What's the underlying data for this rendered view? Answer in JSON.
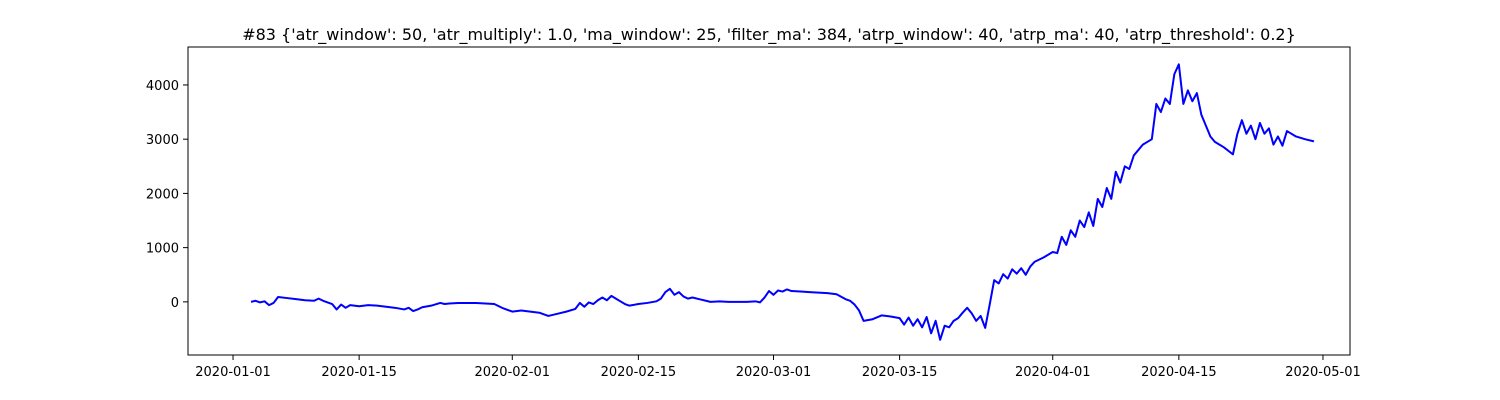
{
  "chart_data": {
    "type": "line",
    "title": "#83 {'atr_window': 50, 'atr_multiply': 1.0, 'ma_window': 25, 'filter_ma': 384, 'atrp_window': 40, 'atrp_ma': 40, 'atrp_threshold': 0.2}",
    "xlabel": "",
    "ylabel": "",
    "x_axis": {
      "kind": "date",
      "range": [
        "2019-12-27",
        "2020-05-04"
      ],
      "ticks": [
        {
          "value": "2020-01-01",
          "label": "2020-01-01"
        },
        {
          "value": "2020-01-15",
          "label": "2020-01-15"
        },
        {
          "value": "2020-02-01",
          "label": "2020-02-01"
        },
        {
          "value": "2020-02-15",
          "label": "2020-02-15"
        },
        {
          "value": "2020-03-01",
          "label": "2020-03-01"
        },
        {
          "value": "2020-03-15",
          "label": "2020-03-15"
        },
        {
          "value": "2020-04-01",
          "label": "2020-04-01"
        },
        {
          "value": "2020-04-15",
          "label": "2020-04-15"
        },
        {
          "value": "2020-05-01",
          "label": "2020-05-01"
        }
      ]
    },
    "y_axis": {
      "range": [
        -980,
        4700
      ],
      "ticks": [
        {
          "value": 0,
          "label": "0"
        },
        {
          "value": 1000,
          "label": "1000"
        },
        {
          "value": 2000,
          "label": "2000"
        },
        {
          "value": 3000,
          "label": "3000"
        },
        {
          "value": 4000,
          "label": "4000"
        }
      ]
    },
    "grid": false,
    "legend": "none",
    "series": [
      {
        "color": "#0000ff",
        "points": [
          [
            "2020-01-03",
            0
          ],
          [
            "2020-01-03T12:00",
            20
          ],
          [
            "2020-01-04",
            -10
          ],
          [
            "2020-01-04T12:00",
            10
          ],
          [
            "2020-01-05",
            -60
          ],
          [
            "2020-01-05T12:00",
            -20
          ],
          [
            "2020-01-06",
            90
          ],
          [
            "2020-01-07",
            70
          ],
          [
            "2020-01-08",
            50
          ],
          [
            "2020-01-09",
            30
          ],
          [
            "2020-01-10",
            20
          ],
          [
            "2020-01-10T12:00",
            60
          ],
          [
            "2020-01-11",
            20
          ],
          [
            "2020-01-12",
            -40
          ],
          [
            "2020-01-12T12:00",
            -140
          ],
          [
            "2020-01-13",
            -50
          ],
          [
            "2020-01-13T12:00",
            -110
          ],
          [
            "2020-01-14",
            -60
          ],
          [
            "2020-01-15",
            -80
          ],
          [
            "2020-01-16",
            -60
          ],
          [
            "2020-01-17",
            -70
          ],
          [
            "2020-01-18",
            -90
          ],
          [
            "2020-01-19",
            -110
          ],
          [
            "2020-01-20",
            -140
          ],
          [
            "2020-01-20T12:00",
            -110
          ],
          [
            "2020-01-21",
            -170
          ],
          [
            "2020-01-21T12:00",
            -140
          ],
          [
            "2020-01-22",
            -100
          ],
          [
            "2020-01-23",
            -70
          ],
          [
            "2020-01-24",
            -20
          ],
          [
            "2020-01-24T12:00",
            -40
          ],
          [
            "2020-01-25",
            -30
          ],
          [
            "2020-01-26",
            -20
          ],
          [
            "2020-01-27",
            -20
          ],
          [
            "2020-01-28",
            -20
          ],
          [
            "2020-01-29",
            -30
          ],
          [
            "2020-01-30",
            -40
          ],
          [
            "2020-01-31",
            -120
          ],
          [
            "2020-02-01",
            -180
          ],
          [
            "2020-02-02",
            -160
          ],
          [
            "2020-02-03",
            -180
          ],
          [
            "2020-02-04",
            -200
          ],
          [
            "2020-02-05",
            -260
          ],
          [
            "2020-02-06",
            -220
          ],
          [
            "2020-02-07",
            -180
          ],
          [
            "2020-02-08",
            -130
          ],
          [
            "2020-02-08T12:00",
            -20
          ],
          [
            "2020-02-09",
            -90
          ],
          [
            "2020-02-09T12:00",
            -10
          ],
          [
            "2020-02-10",
            -40
          ],
          [
            "2020-02-10T12:00",
            30
          ],
          [
            "2020-02-11",
            80
          ],
          [
            "2020-02-11T12:00",
            30
          ],
          [
            "2020-02-12",
            110
          ],
          [
            "2020-02-12T12:00",
            60
          ],
          [
            "2020-02-13",
            10
          ],
          [
            "2020-02-13T12:00",
            -40
          ],
          [
            "2020-02-14",
            -70
          ],
          [
            "2020-02-15",
            -40
          ],
          [
            "2020-02-16",
            -20
          ],
          [
            "2020-02-17",
            10
          ],
          [
            "2020-02-17T12:00",
            60
          ],
          [
            "2020-02-18",
            180
          ],
          [
            "2020-02-18T12:00",
            240
          ],
          [
            "2020-02-19",
            130
          ],
          [
            "2020-02-19T12:00",
            180
          ],
          [
            "2020-02-20",
            100
          ],
          [
            "2020-02-20T12:00",
            60
          ],
          [
            "2020-02-21",
            80
          ],
          [
            "2020-02-22",
            40
          ],
          [
            "2020-02-22T12:00",
            20
          ],
          [
            "2020-02-23",
            0
          ],
          [
            "2020-02-24",
            10
          ],
          [
            "2020-02-25",
            0
          ],
          [
            "2020-02-26",
            0
          ],
          [
            "2020-02-27",
            0
          ],
          [
            "2020-02-28",
            10
          ],
          [
            "2020-02-28T12:00",
            -10
          ],
          [
            "2020-02-29",
            80
          ],
          [
            "2020-02-29T12:00",
            200
          ],
          [
            "2020-03-01",
            130
          ],
          [
            "2020-03-01T12:00",
            210
          ],
          [
            "2020-03-02",
            190
          ],
          [
            "2020-03-02T12:00",
            230
          ],
          [
            "2020-03-03",
            200
          ],
          [
            "2020-03-04",
            190
          ],
          [
            "2020-03-05",
            180
          ],
          [
            "2020-03-06",
            170
          ],
          [
            "2020-03-07",
            160
          ],
          [
            "2020-03-08",
            140
          ],
          [
            "2020-03-09",
            50
          ],
          [
            "2020-03-09T12:00",
            20
          ],
          [
            "2020-03-10",
            -50
          ],
          [
            "2020-03-10T12:00",
            -160
          ],
          [
            "2020-03-11",
            -350
          ],
          [
            "2020-03-12",
            -320
          ],
          [
            "2020-03-13",
            -250
          ],
          [
            "2020-03-14",
            -270
          ],
          [
            "2020-03-15",
            -300
          ],
          [
            "2020-03-15T12:00",
            -420
          ],
          [
            "2020-03-16",
            -290
          ],
          [
            "2020-03-16T12:00",
            -440
          ],
          [
            "2020-03-17",
            -320
          ],
          [
            "2020-03-17T12:00",
            -470
          ],
          [
            "2020-03-18",
            -280
          ],
          [
            "2020-03-18T12:00",
            -580
          ],
          [
            "2020-03-19",
            -350
          ],
          [
            "2020-03-19T12:00",
            -700
          ],
          [
            "2020-03-20",
            -440
          ],
          [
            "2020-03-20T12:00",
            -470
          ],
          [
            "2020-03-21",
            -350
          ],
          [
            "2020-03-21T12:00",
            -300
          ],
          [
            "2020-03-22",
            -200
          ],
          [
            "2020-03-22T12:00",
            -110
          ],
          [
            "2020-03-23",
            -210
          ],
          [
            "2020-03-23T12:00",
            -350
          ],
          [
            "2020-03-24",
            -260
          ],
          [
            "2020-03-24T12:00",
            -480
          ],
          [
            "2020-03-25",
            -50
          ],
          [
            "2020-03-25T12:00",
            400
          ],
          [
            "2020-03-26",
            340
          ],
          [
            "2020-03-26T12:00",
            510
          ],
          [
            "2020-03-27",
            430
          ],
          [
            "2020-03-27T12:00",
            600
          ],
          [
            "2020-03-28",
            520
          ],
          [
            "2020-03-28T12:00",
            620
          ],
          [
            "2020-03-29",
            500
          ],
          [
            "2020-03-29T12:00",
            650
          ],
          [
            "2020-03-30",
            740
          ],
          [
            "2020-03-31",
            820
          ],
          [
            "2020-04-01",
            920
          ],
          [
            "2020-04-01T12:00",
            900
          ],
          [
            "2020-04-02",
            1200
          ],
          [
            "2020-04-02T12:00",
            1050
          ],
          [
            "2020-04-03",
            1320
          ],
          [
            "2020-04-03T12:00",
            1200
          ],
          [
            "2020-04-04",
            1500
          ],
          [
            "2020-04-04T12:00",
            1380
          ],
          [
            "2020-04-05",
            1650
          ],
          [
            "2020-04-05T12:00",
            1400
          ],
          [
            "2020-04-06",
            1900
          ],
          [
            "2020-04-06T12:00",
            1750
          ],
          [
            "2020-04-07",
            2100
          ],
          [
            "2020-04-07T12:00",
            1900
          ],
          [
            "2020-04-08",
            2400
          ],
          [
            "2020-04-08T12:00",
            2200
          ],
          [
            "2020-04-09",
            2500
          ],
          [
            "2020-04-09T12:00",
            2450
          ],
          [
            "2020-04-10",
            2700
          ],
          [
            "2020-04-11",
            2900
          ],
          [
            "2020-04-12",
            3000
          ],
          [
            "2020-04-12T12:00",
            3650
          ],
          [
            "2020-04-13",
            3500
          ],
          [
            "2020-04-13T12:00",
            3750
          ],
          [
            "2020-04-14",
            3650
          ],
          [
            "2020-04-14T12:00",
            4200
          ],
          [
            "2020-04-15",
            4380
          ],
          [
            "2020-04-15T12:00",
            3650
          ],
          [
            "2020-04-16",
            3900
          ],
          [
            "2020-04-16T12:00",
            3700
          ],
          [
            "2020-04-17",
            3850
          ],
          [
            "2020-04-17T12:00",
            3450
          ],
          [
            "2020-04-18",
            3250
          ],
          [
            "2020-04-18T12:00",
            3050
          ],
          [
            "2020-04-19",
            2950
          ],
          [
            "2020-04-20",
            2850
          ],
          [
            "2020-04-21",
            2720
          ],
          [
            "2020-04-21T12:00",
            3100
          ],
          [
            "2020-04-22",
            3350
          ],
          [
            "2020-04-22T12:00",
            3100
          ],
          [
            "2020-04-23",
            3250
          ],
          [
            "2020-04-23T12:00",
            3000
          ],
          [
            "2020-04-24",
            3300
          ],
          [
            "2020-04-24T12:00",
            3100
          ],
          [
            "2020-04-25",
            3200
          ],
          [
            "2020-04-25T12:00",
            2900
          ],
          [
            "2020-04-26",
            3050
          ],
          [
            "2020-04-26T12:00",
            2880
          ],
          [
            "2020-04-27",
            3150
          ],
          [
            "2020-04-28",
            3050
          ],
          [
            "2020-04-29",
            3000
          ],
          [
            "2020-04-30",
            2960
          ]
        ]
      }
    ]
  }
}
